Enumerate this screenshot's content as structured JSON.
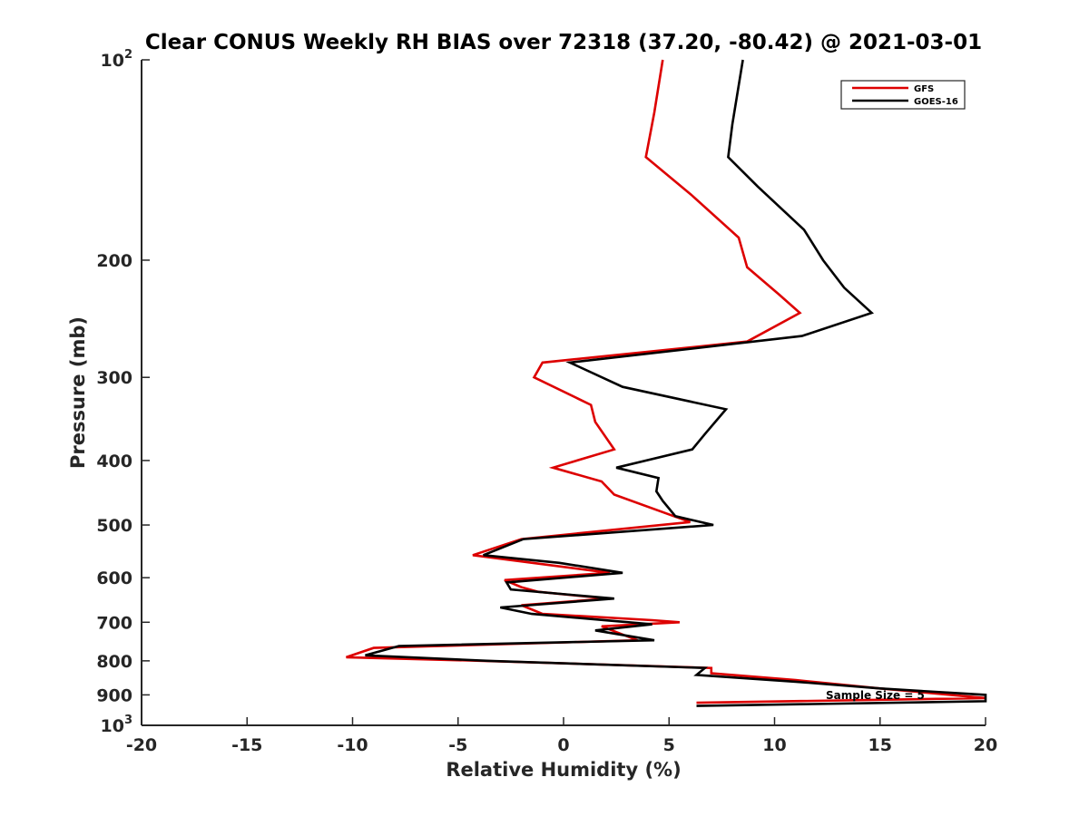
{
  "chart_data": {
    "type": "line",
    "title": "Clear CONUS Weekly RH BIAS over 72318 (37.20, -80.42) @ 2021-03-01",
    "xlabel": "Relative Humidity (%)",
    "ylabel": "Pressure (mb)",
    "xlim": [
      -20,
      20
    ],
    "ylim": [
      100,
      1000
    ],
    "y_scale": "log",
    "y_reversed": true,
    "grid": false,
    "legend_location": "top-right",
    "x_ticks": [
      "-20",
      "-15",
      "-10",
      "-5",
      "0",
      "5",
      "10",
      "15",
      "20"
    ],
    "x_tick_values": [
      -20,
      -15,
      -10,
      -5,
      0,
      5,
      10,
      15,
      20
    ],
    "y_ticks": [
      {
        "value": 100,
        "base": "10",
        "exp": "2"
      },
      {
        "value": 200,
        "label": "200"
      },
      {
        "value": 300,
        "label": "300"
      },
      {
        "value": 400,
        "label": "400"
      },
      {
        "value": 500,
        "label": "500"
      },
      {
        "value": 600,
        "label": "600"
      },
      {
        "value": 700,
        "label": "700"
      },
      {
        "value": 800,
        "label": "800"
      },
      {
        "value": 900,
        "label": "900"
      },
      {
        "value": 1000,
        "base": "10",
        "exp": "3"
      }
    ],
    "series": [
      {
        "name": "GFS",
        "color": "#dd0000",
        "points": [
          [
            4.7,
            100
          ],
          [
            4.3,
            120
          ],
          [
            3.9,
            140
          ],
          [
            6.1,
            160
          ],
          [
            8.3,
            185
          ],
          [
            8.7,
            205
          ],
          [
            10.2,
            225
          ],
          [
            11.2,
            240
          ],
          [
            8.7,
            265
          ],
          [
            -1.0,
            285
          ],
          [
            -1.4,
            300
          ],
          [
            1.3,
            330
          ],
          [
            1.5,
            350
          ],
          [
            2.4,
            385
          ],
          [
            -0.5,
            410
          ],
          [
            1.8,
            430
          ],
          [
            2.4,
            450
          ],
          [
            6.0,
            495
          ],
          [
            -2.0,
            525
          ],
          [
            -4.3,
            555
          ],
          [
            2.2,
            590
          ],
          [
            -2.8,
            605
          ],
          [
            -2.0,
            620
          ],
          [
            -1.2,
            630
          ],
          [
            2.1,
            645
          ],
          [
            -2.0,
            660
          ],
          [
            -1.0,
            680
          ],
          [
            4.2,
            695
          ],
          [
            5.5,
            700
          ],
          [
            1.8,
            710
          ],
          [
            3.5,
            745
          ],
          [
            -9.0,
            765
          ],
          [
            -10.3,
            790
          ],
          [
            -3.8,
            800
          ],
          [
            7.0,
            820
          ],
          [
            7.0,
            835
          ],
          [
            11.0,
            855
          ],
          [
            15.0,
            880
          ],
          [
            20.0,
            910
          ],
          [
            6.3,
            925
          ]
        ]
      },
      {
        "name": "GOES-16",
        "color": "#000000",
        "points": [
          [
            8.5,
            100
          ],
          [
            8.0,
            125
          ],
          [
            7.8,
            140
          ],
          [
            9.2,
            155
          ],
          [
            11.4,
            180
          ],
          [
            12.3,
            200
          ],
          [
            13.3,
            220
          ],
          [
            14.6,
            240
          ],
          [
            11.3,
            260
          ],
          [
            0.3,
            285
          ],
          [
            2.8,
            310
          ],
          [
            7.7,
            335
          ],
          [
            6.7,
            365
          ],
          [
            6.1,
            385
          ],
          [
            2.5,
            410
          ],
          [
            4.5,
            425
          ],
          [
            4.4,
            445
          ],
          [
            4.7,
            460
          ],
          [
            5.3,
            485
          ],
          [
            7.1,
            500
          ],
          [
            -1.9,
            525
          ],
          [
            -3.8,
            555
          ],
          [
            -0.2,
            570
          ],
          [
            2.8,
            590
          ],
          [
            -2.7,
            610
          ],
          [
            -2.5,
            625
          ],
          [
            2.4,
            645
          ],
          [
            -3.0,
            665
          ],
          [
            -1.5,
            680
          ],
          [
            4.2,
            705
          ],
          [
            1.5,
            720
          ],
          [
            4.3,
            745
          ],
          [
            -7.8,
            760
          ],
          [
            -9.4,
            785
          ],
          [
            -3.5,
            800
          ],
          [
            6.7,
            820
          ],
          [
            6.3,
            840
          ],
          [
            11.0,
            860
          ],
          [
            15.0,
            880
          ],
          [
            20.0,
            900
          ],
          [
            20.0,
            920
          ],
          [
            6.3,
            935
          ]
        ]
      }
    ],
    "annotations": [
      "Sample Size = 5"
    ]
  }
}
